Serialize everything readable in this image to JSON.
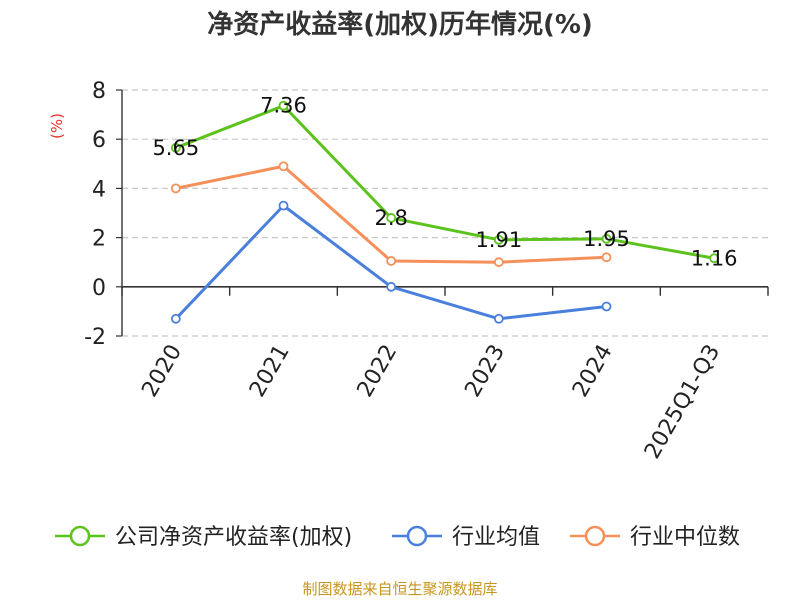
{
  "chart_data": {
    "type": "line",
    "title": "净资产收益率(加权)历年情况(%)",
    "xlabel": "",
    "ylabel": "(%)",
    "ylim": [
      -2,
      8
    ],
    "yticks": [
      -2,
      0,
      2,
      4,
      6,
      8
    ],
    "categories": [
      "2020",
      "2021",
      "2022",
      "2023",
      "2024",
      "2025Q1-Q3"
    ],
    "grid": true,
    "legend_position": "bottom",
    "series": [
      {
        "name": "公司净资产收益率(加权)",
        "color": "#5cc21c",
        "values": [
          5.65,
          7.36,
          2.8,
          1.91,
          1.95,
          1.16
        ],
        "labels": [
          "5.65",
          "7.36",
          "2.8",
          "1.91",
          "1.95",
          "1.16"
        ]
      },
      {
        "name": "行业均值",
        "color": "#4a7fdc",
        "values": [
          -1.3,
          3.3,
          0.0,
          -1.3,
          -0.8,
          null
        ]
      },
      {
        "name": "行业中位数",
        "color": "#f5905a",
        "values": [
          4.0,
          4.9,
          1.05,
          1.0,
          1.2,
          null
        ]
      }
    ]
  },
  "footer": {
    "source": "制图数据来自恒生聚源数据库"
  }
}
